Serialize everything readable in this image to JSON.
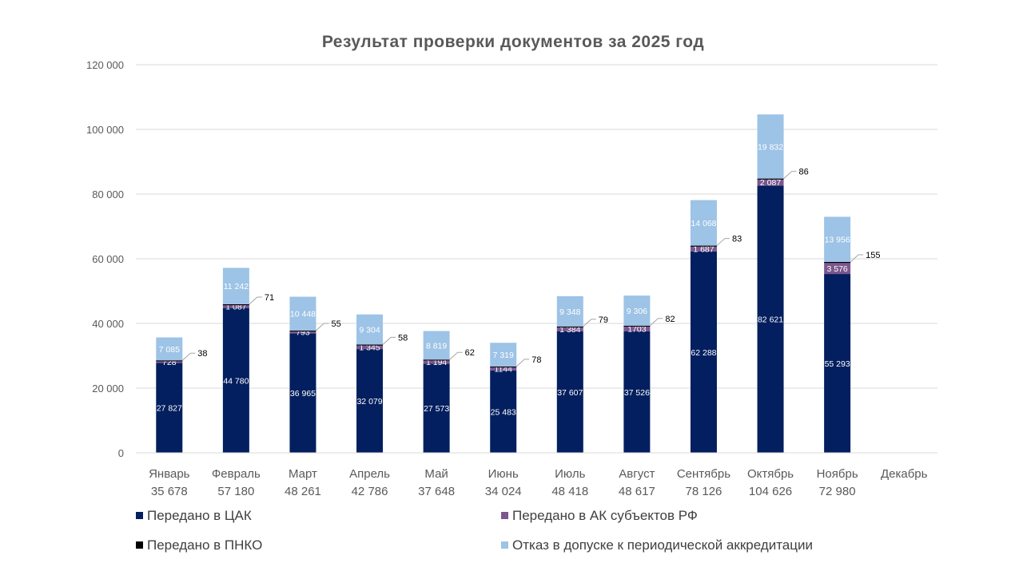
{
  "chart_data": {
    "type": "bar",
    "stacked": true,
    "title": "Результат проверки документов за 2025 год",
    "xlabel": "",
    "ylabel": "",
    "ylim": [
      0,
      120000
    ],
    "yticks": [
      "0",
      "20 000",
      "40 000",
      "60 000",
      "80 000",
      "100 000",
      "120 000"
    ],
    "ytick_values": [
      0,
      20000,
      40000,
      60000,
      80000,
      100000,
      120000
    ],
    "grid": true,
    "legend_position": "bottom",
    "categories": [
      "Январь",
      "Февраль",
      "Март",
      "Апрель",
      "Май",
      "Июнь",
      "Июль",
      "Август",
      "Сентябрь",
      "Октябрь",
      "Ноябрь",
      "Декабрь"
    ],
    "totals": [
      "35 678",
      "57 180",
      "48 261",
      "42 786",
      "37 648",
      "34 024",
      "48 418",
      "48 617",
      "78 126",
      "104 626",
      "72 980",
      ""
    ],
    "series": [
      {
        "name": "Передано в ЦАК",
        "color": "#031F5F",
        "values": [
          27827,
          44780,
          36965,
          32079,
          27573,
          25483,
          37607,
          37526,
          62288,
          82621,
          55293,
          null
        ],
        "labels": [
          "27 827",
          "44 780",
          "36 965",
          "32 079",
          "27 573",
          "25 483",
          "37 607",
          "37 526",
          "62 288",
          "82 621",
          "55 293",
          ""
        ]
      },
      {
        "name": "Передано в АК субъектов РФ",
        "color": "#7B578E",
        "values": [
          728,
          1087,
          793,
          1345,
          1194,
          1144,
          1384,
          1703,
          1687,
          2087,
          3576,
          null
        ],
        "labels": [
          "728",
          "1 087",
          "793",
          "1 345",
          "1 194",
          "1144",
          "1 384",
          "1703",
          "1 687",
          "2 087",
          "3 576",
          ""
        ]
      },
      {
        "name": "Передано в ПНКО",
        "color": "#000000",
        "values": [
          38,
          71,
          55,
          58,
          62,
          78,
          79,
          82,
          83,
          86,
          155,
          null
        ],
        "labels": [
          "38",
          "71",
          "55",
          "58",
          "62",
          "78",
          "79",
          "82",
          "83",
          "86",
          "155",
          ""
        ]
      },
      {
        "name": "Отказ в допуске к периодической  аккредитации",
        "color": "#9DC3E6",
        "values": [
          7085,
          11242,
          10448,
          9304,
          8819,
          7319,
          9348,
          9306,
          14068,
          19832,
          13956,
          null
        ],
        "labels": [
          "7 085",
          "11 242",
          "10 448",
          "9 304",
          "8 819",
          "7 319",
          "9 348",
          "9 306",
          "14 068",
          "19 832",
          "13 956",
          ""
        ]
      }
    ]
  }
}
